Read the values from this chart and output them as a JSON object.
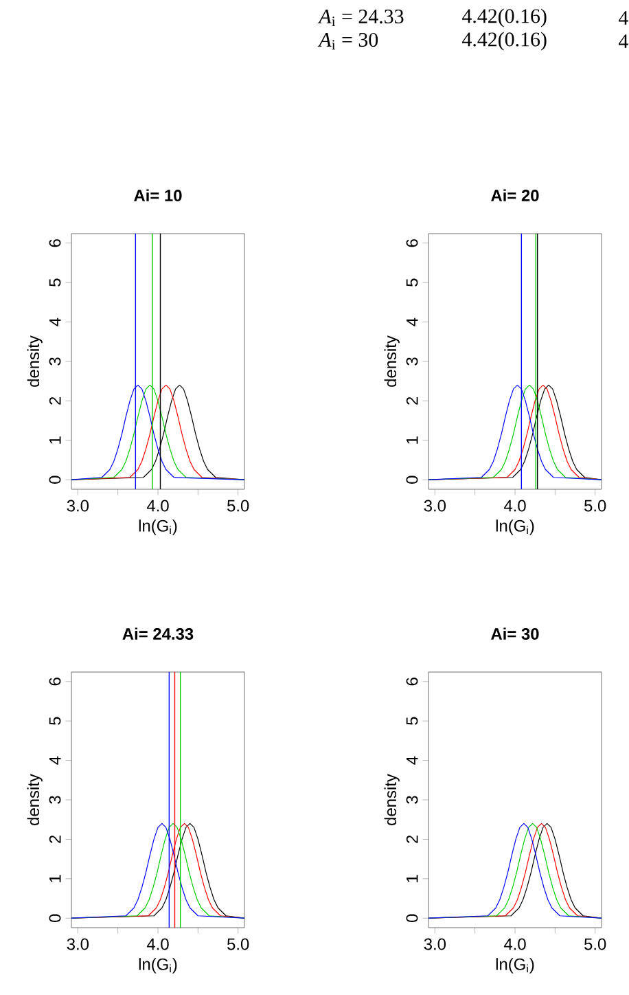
{
  "chart_data": [
    {
      "type": "other",
      "annotations": [
        "*A*$_{i}$ = 24.33",
        "4.42(0.16)",
        "4",
        "*A*$_{i}$ = 30",
        "4.42(0.16)",
        "4"
      ]
    },
    {
      "type": "line",
      "title": "Ai=  10",
      "xlabel": "ln(G$_{i}$)",
      "ylabel": "density",
      "xlim": [
        2.92,
        5.08
      ],
      "ylim": [
        -0.24,
        6.24
      ],
      "xticks": [
        {
          "value": 3,
          "label": "3.0"
        },
        {
          "value": 3.5,
          "label": null
        },
        {
          "value": 4,
          "label": "4.0"
        },
        {
          "value": 4.5,
          "label": null
        },
        {
          "value": 5,
          "label": "5.0"
        }
      ],
      "yticks": [
        0,
        1,
        2,
        3,
        4,
        5,
        6
      ],
      "series": [
        {
          "color": "#000000",
          "x": [
            2.92,
            3.82,
            3.92,
            3.97,
            4.02,
            4.07,
            4.12,
            4.17,
            4.22,
            4.27,
            4.32,
            4.37,
            4.42,
            4.47,
            4.52,
            4.57,
            4.62,
            4.72,
            5.08
          ],
          "values": [
            0,
            0.06,
            0.26,
            0.47,
            0.78,
            1.16,
            1.6,
            2.0,
            2.3,
            2.4,
            2.3,
            2.0,
            1.6,
            1.16,
            0.78,
            0.47,
            0.26,
            0.06,
            0
          ]
        },
        {
          "color": "#ff0000",
          "x": [
            2.92,
            3.65,
            3.75,
            3.8,
            3.85,
            3.9,
            3.95,
            4.0,
            4.05,
            4.1,
            4.15,
            4.2,
            4.25,
            4.3,
            4.35,
            4.4,
            4.45,
            4.55,
            5.08
          ],
          "values": [
            0,
            0.06,
            0.26,
            0.47,
            0.78,
            1.16,
            1.6,
            2.0,
            2.3,
            2.4,
            2.3,
            2.0,
            1.6,
            1.16,
            0.78,
            0.47,
            0.26,
            0.06,
            0
          ]
        },
        {
          "color": "#00cd00",
          "x": [
            2.92,
            3.45,
            3.55,
            3.6,
            3.65,
            3.7,
            3.75,
            3.8,
            3.85,
            3.9,
            3.95,
            4.0,
            4.05,
            4.1,
            4.15,
            4.2,
            4.25,
            4.35,
            5.08
          ],
          "values": [
            0,
            0.06,
            0.26,
            0.47,
            0.78,
            1.16,
            1.6,
            2.0,
            2.3,
            2.4,
            2.3,
            2.0,
            1.6,
            1.16,
            0.78,
            0.47,
            0.26,
            0.06,
            0
          ]
        },
        {
          "color": "#0000ff",
          "x": [
            2.92,
            3.3,
            3.4,
            3.45,
            3.5,
            3.55,
            3.6,
            3.65,
            3.7,
            3.75,
            3.8,
            3.85,
            3.9,
            3.95,
            4.0,
            4.05,
            4.1,
            4.2,
            5.08
          ],
          "values": [
            0,
            0.06,
            0.26,
            0.47,
            0.78,
            1.16,
            1.6,
            2.0,
            2.3,
            2.4,
            2.3,
            2.0,
            1.6,
            1.16,
            0.78,
            0.47,
            0.26,
            0.06,
            0
          ]
        }
      ],
      "ref_lines": [
        {
          "axis": "x",
          "value": 3.72,
          "color": "#0000ff"
        },
        {
          "axis": "x",
          "value": 3.93,
          "color": "#00cd00"
        },
        {
          "axis": "x",
          "value": 4.03,
          "color": "#000000"
        }
      ]
    },
    {
      "type": "line",
      "title": "Ai=  20",
      "xlabel": "ln(G$_{i}$)",
      "ylabel": "density",
      "xlim": [
        2.92,
        5.08
      ],
      "ylim": [
        -0.24,
        6.24
      ],
      "xticks": [
        {
          "value": 3,
          "label": "3.0"
        },
        {
          "value": 3.5,
          "label": null
        },
        {
          "value": 4,
          "label": "4.0"
        },
        {
          "value": 4.5,
          "label": null
        },
        {
          "value": 5,
          "label": "5.0"
        }
      ],
      "yticks": [
        0,
        1,
        2,
        3,
        4,
        5,
        6
      ],
      "series": [
        {
          "color": "#000000",
          "x": [
            2.92,
            3.97,
            4.07,
            4.12,
            4.17,
            4.22,
            4.27,
            4.32,
            4.37,
            4.42,
            4.47,
            4.52,
            4.57,
            4.62,
            4.67,
            4.72,
            4.77,
            4.87,
            5.08
          ],
          "values": [
            0,
            0.06,
            0.26,
            0.47,
            0.78,
            1.16,
            1.6,
            2.0,
            2.3,
            2.4,
            2.3,
            2.0,
            1.6,
            1.16,
            0.78,
            0.47,
            0.26,
            0.06,
            0
          ]
        },
        {
          "color": "#ff0000",
          "x": [
            2.92,
            3.9,
            4.0,
            4.05,
            4.1,
            4.15,
            4.2,
            4.25,
            4.3,
            4.35,
            4.4,
            4.45,
            4.5,
            4.55,
            4.6,
            4.65,
            4.7,
            4.8,
            5.08
          ],
          "values": [
            0,
            0.06,
            0.26,
            0.47,
            0.78,
            1.16,
            1.6,
            2.0,
            2.3,
            2.4,
            2.3,
            2.0,
            1.6,
            1.16,
            0.78,
            0.47,
            0.26,
            0.06,
            0
          ]
        },
        {
          "color": "#00cd00",
          "x": [
            2.92,
            3.73,
            3.83,
            3.88,
            3.93,
            3.98,
            4.03,
            4.08,
            4.13,
            4.18,
            4.23,
            4.28,
            4.33,
            4.38,
            4.43,
            4.48,
            4.53,
            4.63,
            5.08
          ],
          "values": [
            0,
            0.06,
            0.26,
            0.47,
            0.78,
            1.16,
            1.6,
            2.0,
            2.3,
            2.4,
            2.3,
            2.0,
            1.6,
            1.16,
            0.78,
            0.47,
            0.26,
            0.06,
            0
          ]
        },
        {
          "color": "#0000ff",
          "x": [
            2.92,
            3.58,
            3.68,
            3.73,
            3.78,
            3.83,
            3.88,
            3.93,
            3.98,
            4.03,
            4.08,
            4.13,
            4.18,
            4.23,
            4.28,
            4.33,
            4.38,
            4.48,
            5.08
          ],
          "values": [
            0,
            0.06,
            0.26,
            0.47,
            0.78,
            1.16,
            1.6,
            2.0,
            2.3,
            2.4,
            2.3,
            2.0,
            1.6,
            1.16,
            0.78,
            0.47,
            0.26,
            0.06,
            0
          ]
        }
      ],
      "ref_lines": [
        {
          "axis": "x",
          "value": 4.08,
          "color": "#0000ff"
        },
        {
          "axis": "x",
          "value": 4.26,
          "color": "#00cd00"
        },
        {
          "axis": "x",
          "value": 4.28,
          "color": "#000000"
        }
      ]
    },
    {
      "type": "line",
      "title": "Ai=  24.33",
      "xlabel": "ln(G$_{i}$)",
      "ylabel": "density",
      "xlim": [
        2.92,
        5.08
      ],
      "ylim": [
        -0.24,
        6.24
      ],
      "xticks": [
        {
          "value": 3,
          "label": "3.0"
        },
        {
          "value": 3.5,
          "label": null
        },
        {
          "value": 4,
          "label": "4.0"
        },
        {
          "value": 4.5,
          "label": null
        },
        {
          "value": 5,
          "label": "5.0"
        }
      ],
      "yticks": [
        0,
        1,
        2,
        3,
        4,
        5,
        6
      ],
      "series": [
        {
          "color": "#000000",
          "x": [
            2.92,
            3.95,
            4.05,
            4.1,
            4.15,
            4.2,
            4.25,
            4.3,
            4.35,
            4.4,
            4.45,
            4.5,
            4.55,
            4.6,
            4.65,
            4.7,
            4.75,
            4.85,
            5.08
          ],
          "values": [
            0,
            0.06,
            0.26,
            0.47,
            0.78,
            1.16,
            1.6,
            2.0,
            2.3,
            2.4,
            2.3,
            2.0,
            1.6,
            1.16,
            0.78,
            0.47,
            0.26,
            0.06,
            0
          ]
        },
        {
          "color": "#ff0000",
          "x": [
            2.92,
            3.88,
            3.98,
            4.03,
            4.08,
            4.13,
            4.18,
            4.23,
            4.28,
            4.33,
            4.38,
            4.43,
            4.48,
            4.53,
            4.58,
            4.63,
            4.68,
            4.78,
            5.08
          ],
          "values": [
            0,
            0.06,
            0.26,
            0.47,
            0.78,
            1.16,
            1.6,
            2.0,
            2.3,
            2.4,
            2.3,
            2.0,
            1.6,
            1.16,
            0.78,
            0.47,
            0.26,
            0.06,
            0
          ]
        },
        {
          "color": "#00cd00",
          "x": [
            2.92,
            3.74,
            3.84,
            3.89,
            3.94,
            3.99,
            4.04,
            4.09,
            4.14,
            4.19,
            4.24,
            4.29,
            4.34,
            4.39,
            4.44,
            4.49,
            4.54,
            4.64,
            5.08
          ],
          "values": [
            0,
            0.06,
            0.26,
            0.47,
            0.78,
            1.16,
            1.6,
            2.0,
            2.3,
            2.4,
            2.3,
            2.0,
            1.6,
            1.16,
            0.78,
            0.47,
            0.26,
            0.06,
            0
          ]
        },
        {
          "color": "#0000ff",
          "x": [
            2.92,
            3.6,
            3.7,
            3.75,
            3.8,
            3.85,
            3.9,
            3.95,
            4.0,
            4.05,
            4.1,
            4.15,
            4.2,
            4.25,
            4.3,
            4.35,
            4.4,
            4.5,
            5.08
          ],
          "values": [
            0,
            0.06,
            0.26,
            0.47,
            0.78,
            1.16,
            1.6,
            2.0,
            2.3,
            2.4,
            2.3,
            2.0,
            1.6,
            1.16,
            0.78,
            0.47,
            0.26,
            0.06,
            0
          ]
        }
      ],
      "ref_lines": [
        {
          "axis": "x",
          "value": 4.14,
          "color": "#0000ff"
        },
        {
          "axis": "x",
          "value": 4.21,
          "color": "#ff0000"
        },
        {
          "axis": "x",
          "value": 4.28,
          "color": "#00cd00"
        }
      ]
    },
    {
      "type": "line",
      "title": "Ai=  30",
      "xlabel": "ln(G$_{i}$)",
      "ylabel": "density",
      "xlim": [
        2.92,
        5.08
      ],
      "ylim": [
        -0.24,
        6.24
      ],
      "xticks": [
        {
          "value": 3,
          "label": "3.0"
        },
        {
          "value": 3.5,
          "label": null
        },
        {
          "value": 4,
          "label": "4.0"
        },
        {
          "value": 4.5,
          "label": null
        },
        {
          "value": 5,
          "label": "5.0"
        }
      ],
      "yticks": [
        0,
        1,
        2,
        3,
        4,
        5,
        6
      ],
      "series": [
        {
          "color": "#000000",
          "x": [
            2.92,
            3.95,
            4.05,
            4.1,
            4.15,
            4.2,
            4.25,
            4.3,
            4.35,
            4.4,
            4.45,
            4.5,
            4.55,
            4.6,
            4.65,
            4.7,
            4.75,
            4.85,
            5.08
          ],
          "values": [
            0,
            0.06,
            0.26,
            0.47,
            0.78,
            1.16,
            1.6,
            2.0,
            2.3,
            2.4,
            2.3,
            2.0,
            1.6,
            1.16,
            0.78,
            0.47,
            0.26,
            0.06,
            0
          ]
        },
        {
          "color": "#ff0000",
          "x": [
            2.92,
            3.88,
            3.98,
            4.03,
            4.08,
            4.13,
            4.18,
            4.23,
            4.28,
            4.33,
            4.38,
            4.43,
            4.48,
            4.53,
            4.58,
            4.63,
            4.68,
            4.78,
            5.08
          ],
          "values": [
            0,
            0.06,
            0.26,
            0.47,
            0.78,
            1.16,
            1.6,
            2.0,
            2.3,
            2.4,
            2.3,
            2.0,
            1.6,
            1.16,
            0.78,
            0.47,
            0.26,
            0.06,
            0
          ]
        },
        {
          "color": "#00cd00",
          "x": [
            2.92,
            3.77,
            3.87,
            3.92,
            3.97,
            4.02,
            4.07,
            4.12,
            4.17,
            4.22,
            4.27,
            4.32,
            4.37,
            4.42,
            4.47,
            4.52,
            4.57,
            4.67,
            5.08
          ],
          "values": [
            0,
            0.06,
            0.26,
            0.47,
            0.78,
            1.16,
            1.6,
            2.0,
            2.3,
            2.4,
            2.3,
            2.0,
            1.6,
            1.16,
            0.78,
            0.47,
            0.26,
            0.06,
            0
          ]
        },
        {
          "color": "#0000ff",
          "x": [
            2.92,
            3.66,
            3.76,
            3.81,
            3.86,
            3.91,
            3.96,
            4.01,
            4.06,
            4.11,
            4.16,
            4.21,
            4.26,
            4.31,
            4.36,
            4.41,
            4.46,
            4.56,
            5.08
          ],
          "values": [
            0,
            0.06,
            0.26,
            0.47,
            0.78,
            1.16,
            1.6,
            2.0,
            2.3,
            2.4,
            2.3,
            2.0,
            1.6,
            1.16,
            0.78,
            0.47,
            0.26,
            0.06,
            0
          ]
        }
      ]
    }
  ]
}
